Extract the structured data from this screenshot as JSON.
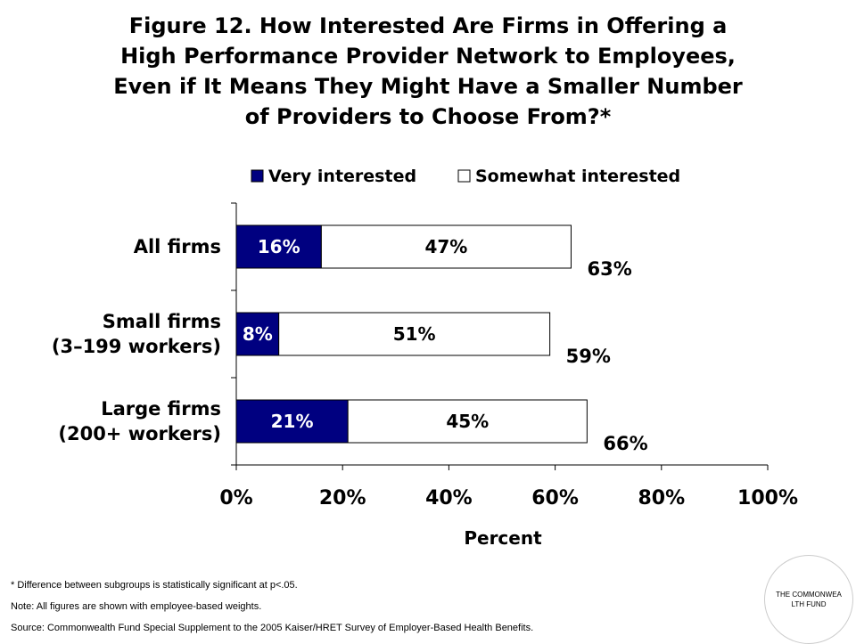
{
  "title": {
    "lines": [
      "Figure 12. How Interested Are Firms in Offering a",
      "High Performance Provider Network to Employees,",
      "Even if It Means They Might Have a Smaller Number",
      "of Providers to Choose From?*"
    ]
  },
  "colors": {
    "very": "#000080",
    "somewhat": "#ffffff",
    "text_on_dark": "#ffffff"
  },
  "chart_data": {
    "type": "bar",
    "orientation": "horizontal",
    "stacked": true,
    "categories": [
      [
        "All firms"
      ],
      [
        "Small firms",
        "(3–199 workers)"
      ],
      [
        "Large firms",
        "(200+ workers)"
      ]
    ],
    "series": [
      {
        "name": "Very interested",
        "values": [
          16,
          8,
          21
        ],
        "labels": [
          "16%",
          "8%",
          "21%"
        ]
      },
      {
        "name": "Somewhat interested",
        "values": [
          47,
          51,
          45
        ],
        "labels": [
          "47%",
          "51%",
          "45%"
        ]
      }
    ],
    "totals": [
      63,
      59,
      66
    ],
    "total_labels": [
      "63%",
      "59%",
      "66%"
    ],
    "xlabel": "Percent",
    "xlim": [
      0,
      100
    ],
    "xticks": [
      0,
      20,
      40,
      60,
      80,
      100
    ],
    "xtick_labels": [
      "0%",
      "20%",
      "40%",
      "60%",
      "80%",
      "100%"
    ],
    "legend_position": "top",
    "grid": false
  },
  "notes": {
    "significance": "* Difference between subgroups is statistically significant at p<.05.",
    "note": "Note: All figures are shown with employee-based weights.",
    "source": "Source: Commonwealth Fund Special Supplement to the 2005 Kaiser/HRET Survey of Employer-Based Health Benefits."
  },
  "logo": {
    "text": "THE COMMONWEALTH FUND"
  }
}
